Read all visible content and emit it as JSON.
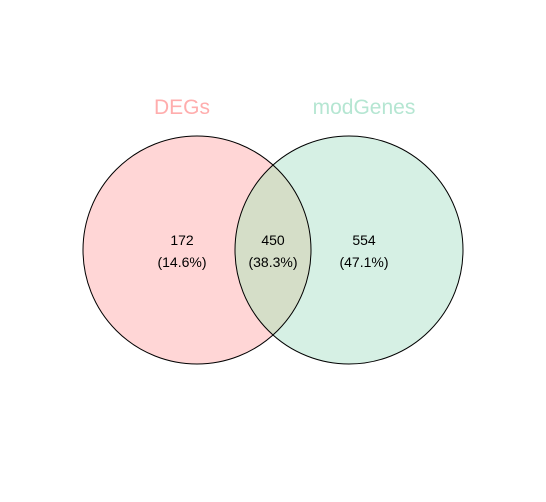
{
  "sets": [
    {
      "name": "DEGs",
      "fill": "#FFD6D6",
      "label_color": "#FFADAD"
    },
    {
      "name": "modGenes",
      "fill": "#D6F0E4",
      "label_color": "#B5E6D2"
    }
  ],
  "overlap_fill": "#D5DEC8",
  "outline_color": "#000000",
  "regions": {
    "degs_only": {
      "count": "172",
      "percent": "(14.6%)"
    },
    "both": {
      "count": "450",
      "percent": "(38.3%)"
    },
    "modgenes_only": {
      "count": "554",
      "percent": "(47.1%)"
    }
  }
}
